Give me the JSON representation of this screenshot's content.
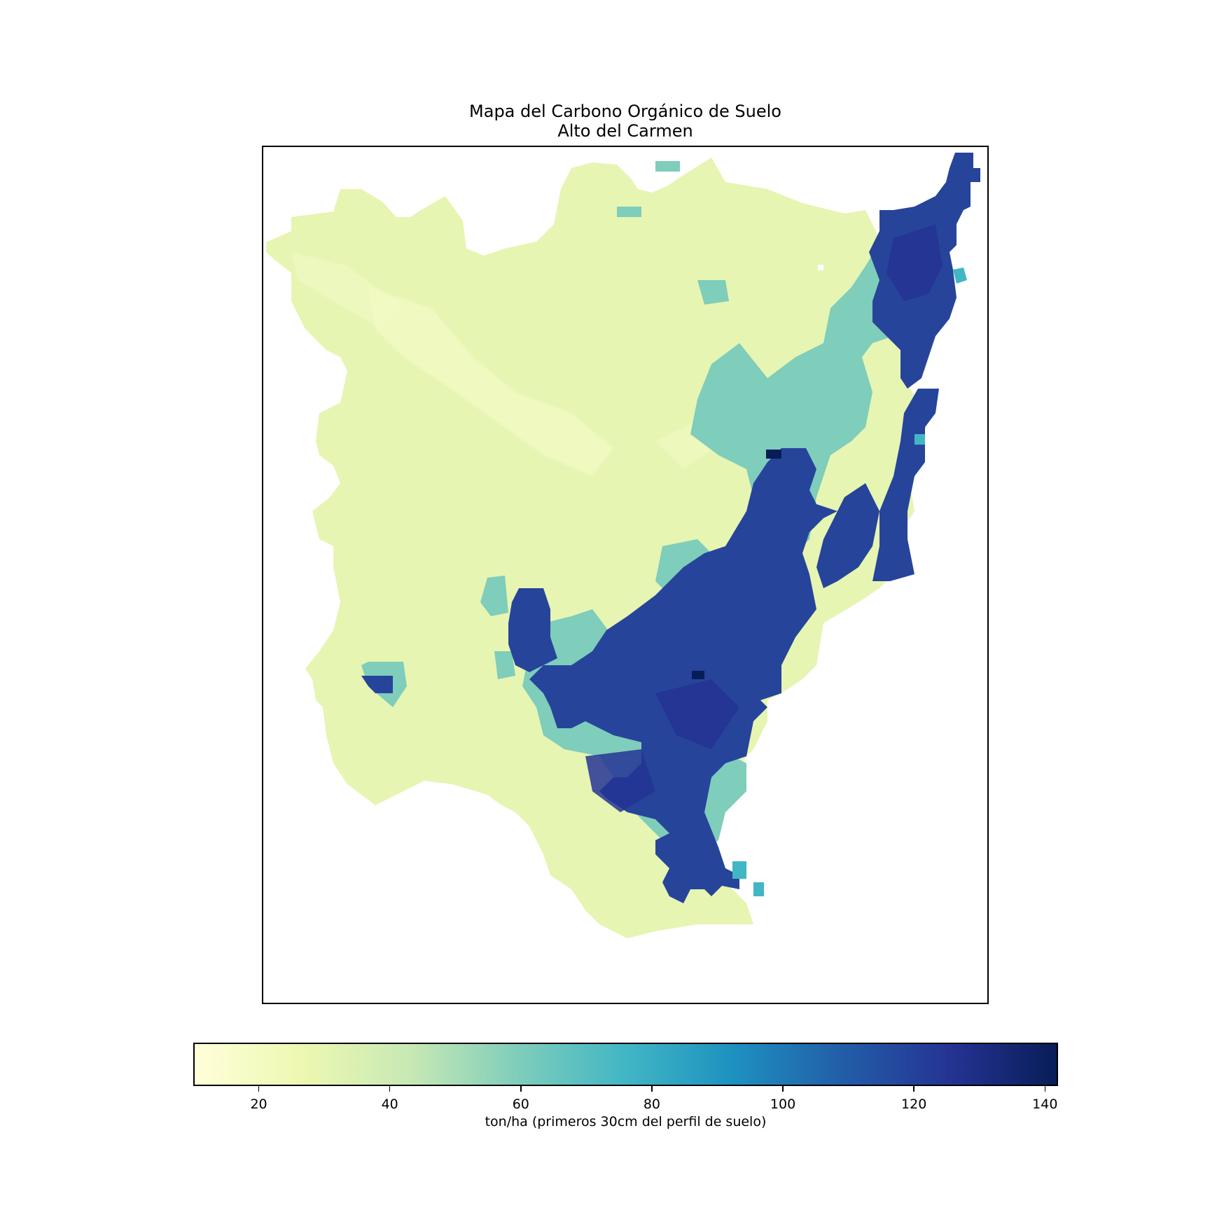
{
  "title": {
    "line1": "Mapa del Carbono Orgánico de Suelo",
    "line2": "Alto del Carmen"
  },
  "colorbar": {
    "label": "ton/ha (primeros 30cm del perfil de suelo)",
    "min": 10,
    "max": 142,
    "ticks": [
      "20",
      "40",
      "60",
      "80",
      "100",
      "120",
      "140"
    ],
    "tick_values": [
      20,
      40,
      60,
      80,
      100,
      120,
      140
    ],
    "colormap": "YlGnBu",
    "stops": [
      "#ffffd9",
      "#edf8b1",
      "#c7e9b4",
      "#7fcdbb",
      "#41b6c4",
      "#1d91c0",
      "#225ea8",
      "#253494",
      "#081d58"
    ]
  },
  "map": {
    "description_colors": {
      "low": "#e6f5b2",
      "mid": "#5bbdc0",
      "high": "#27449b"
    }
  }
}
